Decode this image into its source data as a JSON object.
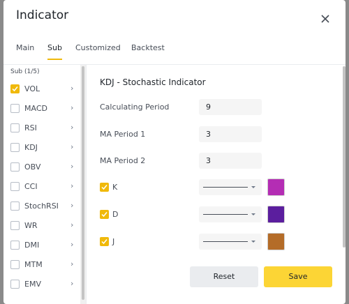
{
  "header": {
    "title": "Indicator"
  },
  "tabs": [
    {
      "label": "Main",
      "active": false
    },
    {
      "label": "Sub",
      "active": true
    },
    {
      "label": "Customized",
      "active": false
    },
    {
      "label": "Backtest",
      "active": false
    }
  ],
  "sidebar": {
    "heading": "Sub (1/5)",
    "items": [
      {
        "label": "VOL",
        "checked": true
      },
      {
        "label": "MACD",
        "checked": false
      },
      {
        "label": "RSI",
        "checked": false
      },
      {
        "label": "KDJ",
        "checked": false
      },
      {
        "label": "OBV",
        "checked": false
      },
      {
        "label": "CCI",
        "checked": false
      },
      {
        "label": "StochRSI",
        "checked": false
      },
      {
        "label": "WR",
        "checked": false
      },
      {
        "label": "DMI",
        "checked": false
      },
      {
        "label": "MTM",
        "checked": false
      },
      {
        "label": "EMV",
        "checked": false
      }
    ]
  },
  "panel": {
    "title": "KDJ - Stochastic Indicator",
    "fields": [
      {
        "label": "Calculating Period",
        "value": "9"
      },
      {
        "label": "MA Period 1",
        "value": "3"
      },
      {
        "label": "MA Period 2",
        "value": "3"
      }
    ],
    "lines": [
      {
        "label": "K",
        "checked": true,
        "color": "#b42db4"
      },
      {
        "label": "D",
        "checked": true,
        "color": "#5b1e9e"
      },
      {
        "label": "J",
        "checked": true,
        "color": "#b46c28"
      }
    ]
  },
  "buttons": {
    "reset": "Reset",
    "save": "Save"
  }
}
